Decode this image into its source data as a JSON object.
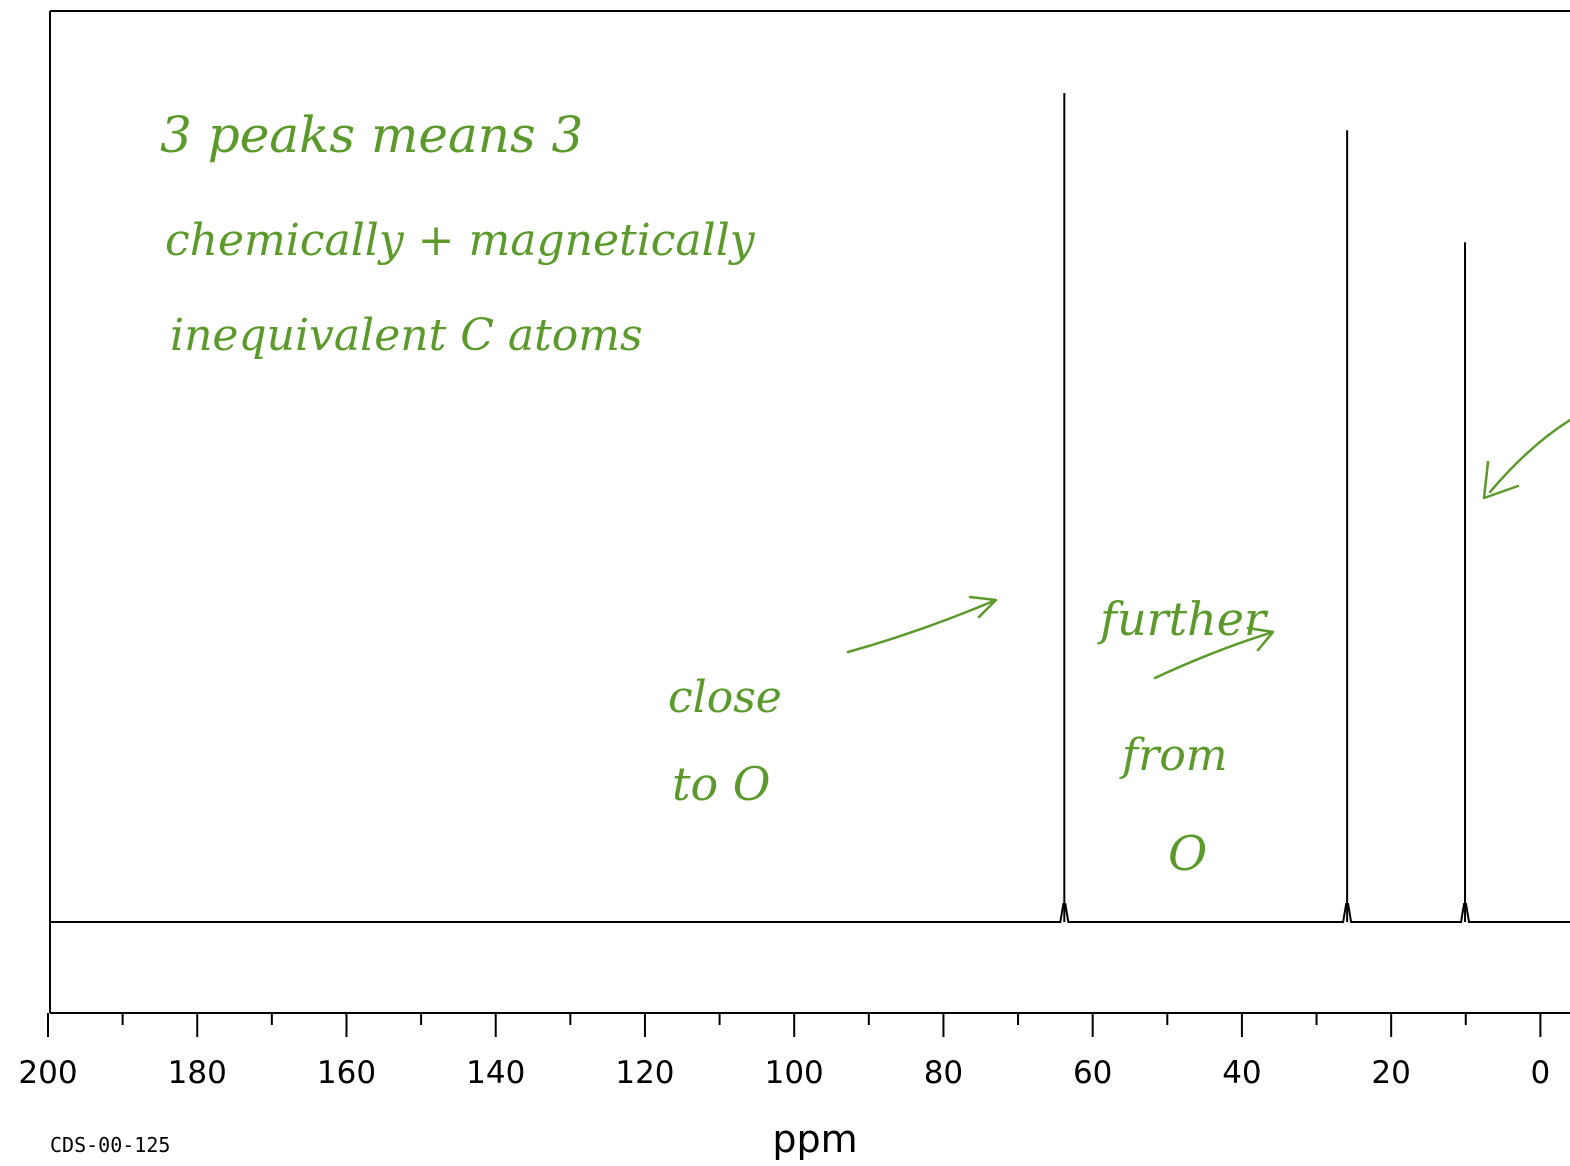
{
  "chart_data": {
    "type": "line",
    "title": "",
    "xlabel": "ppm",
    "ylabel": "",
    "xlim": [
      200,
      0
    ],
    "x_reversed": true,
    "major_ticks": [
      200,
      180,
      160,
      140,
      120,
      100,
      80,
      60,
      40,
      20,
      0
    ],
    "tick_labels": [
      "200",
      "180",
      "160",
      "140",
      "120",
      "100",
      "80",
      "60",
      "40",
      "20",
      "0"
    ],
    "minor_ticks": [
      190,
      170,
      150,
      130,
      110,
      90,
      70,
      50,
      30,
      10
    ],
    "grid": false,
    "peaks": [
      {
        "ppm": 63.8,
        "intensity": 1.0
      },
      {
        "ppm": 25.9,
        "intensity": 0.955
      },
      {
        "ppm": 10.1,
        "intensity": 0.82
      }
    ],
    "spectrum_id": "CDS-00-125"
  },
  "annotations": {
    "note_line1": "3 peaks means 3",
    "note_line2": "chemically + magnetically",
    "note_line3": "inequivalent C atoms",
    "close_line1": "close",
    "close_line2": "to O",
    "further_line1": "further",
    "further_line2": "from",
    "further_line3": "O"
  },
  "colors": {
    "ink": "#5b9a2a",
    "spectrum": "#000000"
  }
}
